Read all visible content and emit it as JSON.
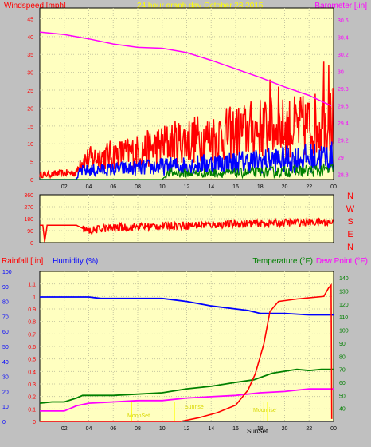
{
  "colors": {
    "background": "#c0c0c0",
    "plot_bg": "#ffffc0",
    "wind_speed": "#ff0000",
    "wind_avg": "#0000ff",
    "wind_low": "#008000",
    "barometer": "#ff00ff",
    "direction": "#ff0000",
    "rainfall": "#ff0000",
    "humidity": "#0000ff",
    "temperature": "#008000",
    "dew_point": "#ff00ff",
    "sun": "#ffff00"
  },
  "header": {
    "left_label": "Windspeed [mph]",
    "title": "24 hour graph day   October 28 2015",
    "right_label": "Barometer [.in]"
  },
  "bottom_header": {
    "rain_label": "Rainfall [.in]",
    "humidity_label": "Humidity (%)",
    "temperature_label": "Temperature (°F)",
    "dew_label": "Dew Point (°F)"
  },
  "compass": [
    "N",
    "W",
    "S",
    "E",
    "N"
  ],
  "sun_labels": {
    "moonset": "MoonSet",
    "sunrise": "Sunrise",
    "moonrise": "Moonrise",
    "sunset": "SunSet"
  },
  "chart_data": [
    {
      "type": "line",
      "name": "wind-barometer",
      "x_ticks": [
        "02",
        "04",
        "06",
        "08",
        "10",
        "12",
        "14",
        "16",
        "18",
        "20",
        "22",
        "00"
      ],
      "xlim": [
        0,
        24
      ],
      "ylim_left": [
        0,
        48
      ],
      "yticks_left": [
        "0",
        "5",
        "10",
        "15",
        "20",
        "25",
        "30",
        "35",
        "40",
        "45"
      ],
      "ylim_right": [
        28.74,
        30.74
      ],
      "yticks_right": [
        "28.8",
        "29",
        "29.2",
        "29.4",
        "29.6",
        "29.8",
        "30",
        "30.2",
        "30.4",
        "30.6"
      ],
      "barometer": [
        [
          0,
          30.46
        ],
        [
          2,
          30.43
        ],
        [
          4,
          30.38
        ],
        [
          6,
          30.32
        ],
        [
          8,
          30.28
        ],
        [
          10,
          30.27
        ],
        [
          12,
          30.22
        ],
        [
          14,
          30.13
        ],
        [
          16,
          30.03
        ],
        [
          18,
          29.93
        ],
        [
          20,
          29.82
        ],
        [
          22,
          29.72
        ],
        [
          23.8,
          29.6
        ]
      ],
      "wind_gust_profile": [
        [
          0,
          2
        ],
        [
          3,
          3
        ],
        [
          3.3,
          8
        ],
        [
          5,
          10
        ],
        [
          8,
          12
        ],
        [
          10,
          15
        ],
        [
          12,
          17
        ],
        [
          14,
          18
        ],
        [
          16,
          20
        ],
        [
          18,
          22
        ],
        [
          20,
          22
        ],
        [
          22,
          23
        ],
        [
          24,
          25
        ]
      ],
      "wind_avg_profile": [
        [
          0,
          0
        ],
        [
          3,
          0
        ],
        [
          3.3,
          3
        ],
        [
          8,
          4
        ],
        [
          12,
          5
        ],
        [
          16,
          6
        ],
        [
          20,
          7
        ],
        [
          24,
          8
        ]
      ],
      "wind_low_profile": [
        [
          0,
          0
        ],
        [
          10,
          0
        ],
        [
          10.5,
          2
        ],
        [
          16,
          2
        ],
        [
          24,
          3
        ]
      ],
      "wind_peaks": [
        [
          18.8,
          28
        ],
        [
          19.5,
          26
        ],
        [
          23.2,
          33
        ],
        [
          23.6,
          32
        ]
      ]
    },
    {
      "type": "line",
      "name": "wind-direction",
      "x_ticks": [
        "02",
        "04",
        "06",
        "08",
        "10",
        "12",
        "14",
        "16",
        "18",
        "20",
        "22",
        "00"
      ],
      "xlim": [
        0,
        24
      ],
      "ylim": [
        0,
        360
      ],
      "yticks": [
        "0",
        "90",
        "180",
        "270",
        "360"
      ],
      "direction_profile": [
        [
          0,
          130
        ],
        [
          0.25,
          130
        ],
        [
          0.4,
          5
        ],
        [
          0.6,
          130
        ],
        [
          3,
          130
        ],
        [
          4,
          85
        ],
        [
          5,
          105
        ],
        [
          8,
          120
        ],
        [
          12,
          130
        ],
        [
          16,
          140
        ],
        [
          20,
          150
        ],
        [
          24,
          155
        ]
      ]
    },
    {
      "type": "line",
      "name": "rain-humidity-temperature",
      "x_ticks": [
        "02",
        "04",
        "06",
        "08",
        "10",
        "12",
        "14",
        "16",
        "18",
        "20",
        "22",
        "00"
      ],
      "xlim": [
        0,
        24
      ],
      "ylim_humidity": [
        0,
        100
      ],
      "yticks_humidity": [
        "0",
        "10",
        "20",
        "30",
        "40",
        "50",
        "60",
        "70",
        "80",
        "90",
        "100"
      ],
      "ylim_rain": [
        0,
        1.2
      ],
      "yticks_rain": [
        "0",
        "0.1",
        "0.2",
        "0.3",
        "0.4",
        "0.5",
        "0.6",
        "0.7",
        "0.8",
        "0.9",
        "1",
        "1.1"
      ],
      "ylim_temp": [
        30,
        145
      ],
      "yticks_temp": [
        "40",
        "50",
        "60",
        "70",
        "80",
        "90",
        "100",
        "110",
        "120",
        "130",
        "140"
      ],
      "rainfall": [
        [
          0,
          0
        ],
        [
          11.5,
          0
        ],
        [
          13,
          0.03
        ],
        [
          14.5,
          0.07
        ],
        [
          16,
          0.13
        ],
        [
          17,
          0.25
        ],
        [
          17.6,
          0.38
        ],
        [
          18.3,
          0.62
        ],
        [
          18.8,
          0.88
        ],
        [
          19.5,
          0.96
        ],
        [
          21,
          0.98
        ],
        [
          23.2,
          1.0
        ],
        [
          23.6,
          1.07
        ],
        [
          23.8,
          1.09
        ],
        [
          23.85,
          0.02
        ]
      ],
      "humidity": [
        [
          0,
          83
        ],
        [
          4,
          83
        ],
        [
          5,
          82
        ],
        [
          8,
          82
        ],
        [
          10,
          82
        ],
        [
          11,
          81
        ],
        [
          12,
          80
        ],
        [
          14,
          77
        ],
        [
          16,
          75
        ],
        [
          17,
          74
        ],
        [
          18,
          72
        ],
        [
          20,
          72
        ],
        [
          22,
          71
        ],
        [
          24,
          71
        ]
      ],
      "temperature": [
        [
          0,
          44
        ],
        [
          1,
          45
        ],
        [
          2,
          45
        ],
        [
          3,
          48
        ],
        [
          3.5,
          50
        ],
        [
          6,
          50
        ],
        [
          8,
          51
        ],
        [
          10,
          52
        ],
        [
          12,
          55
        ],
        [
          14,
          57
        ],
        [
          16,
          60
        ],
        [
          17.5,
          62
        ],
        [
          19,
          67
        ],
        [
          21,
          70
        ],
        [
          22,
          69
        ],
        [
          23,
          70
        ],
        [
          24,
          70
        ]
      ],
      "dew_point": [
        [
          0,
          38
        ],
        [
          1,
          38
        ],
        [
          2,
          38
        ],
        [
          3,
          42
        ],
        [
          4,
          44
        ],
        [
          6,
          45
        ],
        [
          8,
          46
        ],
        [
          10,
          46
        ],
        [
          12,
          48
        ],
        [
          14,
          49
        ],
        [
          16,
          50
        ],
        [
          18,
          52
        ],
        [
          20,
          53
        ],
        [
          22,
          55
        ],
        [
          24,
          55
        ]
      ],
      "moonset_hour": 7.5,
      "sunrise_hour": 11,
      "moonrise_hour": 18.3,
      "sunset_hour": 18.6
    }
  ]
}
